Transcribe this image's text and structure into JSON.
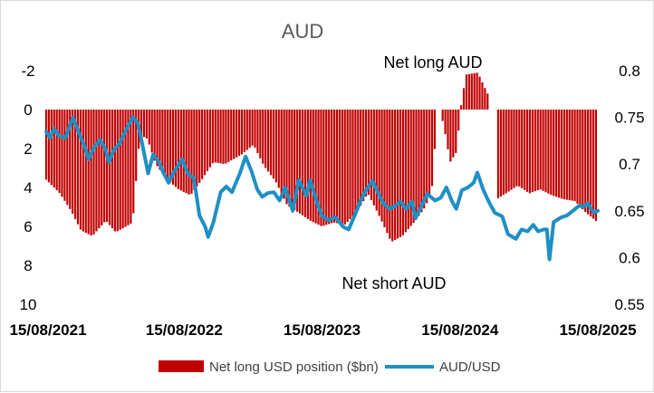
{
  "chart_data": {
    "type": "bar+line",
    "title": "AUD",
    "annotations": {
      "top": "Net long AUD",
      "bottom": "Net short AUD"
    },
    "legend": {
      "placement": "bottom",
      "bar_label": "Net long USD position ($bn)",
      "line_label": "AUD/USD"
    },
    "colors": {
      "bars": "#c00000",
      "line": "#1f8fc4"
    },
    "y_left": {
      "min": -2,
      "max": 10,
      "inverted": true,
      "ticks": [
        -2,
        0,
        2,
        4,
        6,
        8,
        10
      ]
    },
    "y_right": {
      "min": 0.55,
      "max": 0.8,
      "ticks": [
        0.8,
        0.75,
        0.7,
        0.65,
        0.6,
        0.55
      ],
      "tick_labels": [
        "0.8",
        "0.75",
        "0.7",
        "0.65",
        "0.6",
        "0.55"
      ]
    },
    "x_axis": {
      "start": "2021-08-15",
      "end": "2025-08-15",
      "tick_labels": [
        "15/08/2021",
        "15/08/2022",
        "15/08/2023",
        "15/08/2024",
        "15/08/2025"
      ]
    },
    "series": [
      {
        "name": "Net long USD position ($bn)",
        "kind": "bar",
        "frequency": "weekly",
        "anchors": [
          [
            "2021-08-15",
            3.6
          ],
          [
            "2021-09-20",
            4.3
          ],
          [
            "2021-10-20",
            5.2
          ],
          [
            "2021-11-15",
            6.2
          ],
          [
            "2021-12-15",
            6.5
          ],
          [
            "2022-01-20",
            5.7
          ],
          [
            "2022-02-15",
            6.3
          ],
          [
            "2022-03-15",
            6.0
          ],
          [
            "2022-04-01",
            5.8
          ],
          [
            "2022-04-20",
            1.3
          ],
          [
            "2022-05-10",
            1.5
          ],
          [
            "2022-06-01",
            2.8
          ],
          [
            "2022-07-01",
            3.6
          ],
          [
            "2022-08-01",
            4.1
          ],
          [
            "2022-09-01",
            4.4
          ],
          [
            "2022-10-01",
            3.6
          ],
          [
            "2022-11-01",
            2.7
          ],
          [
            "2022-12-01",
            2.8
          ],
          [
            "2023-01-15",
            2.3
          ],
          [
            "2023-02-15",
            1.8
          ],
          [
            "2023-03-15",
            2.9
          ],
          [
            "2023-04-15",
            3.7
          ],
          [
            "2023-05-15",
            4.9
          ],
          [
            "2023-06-15",
            5.3
          ],
          [
            "2023-07-15",
            5.7
          ],
          [
            "2023-08-15",
            6.0
          ],
          [
            "2023-09-15",
            5.8
          ],
          [
            "2023-10-15",
            5.9
          ],
          [
            "2023-11-15",
            5.3
          ],
          [
            "2023-12-15",
            4.3
          ],
          [
            "2024-01-15",
            5.5
          ],
          [
            "2024-02-15",
            6.8
          ],
          [
            "2024-03-15",
            6.5
          ],
          [
            "2024-04-15",
            5.8
          ],
          [
            "2024-05-15",
            5.0
          ],
          [
            "2024-06-01",
            4.2
          ],
          [
            "2024-06-15",
            0.4
          ],
          [
            "2024-07-01",
            0.6
          ],
          [
            "2024-07-20",
            2.7
          ],
          [
            "2024-08-05",
            2.2
          ],
          [
            "2024-08-20",
            -0.6
          ],
          [
            "2024-09-01",
            -1.8
          ],
          [
            "2024-10-01",
            -1.9
          ],
          [
            "2024-10-25",
            -0.9
          ],
          [
            "2024-11-10",
            -0.3
          ],
          [
            "2024-11-20",
            4.6
          ],
          [
            "2024-12-15",
            4.3
          ],
          [
            "2025-01-15",
            3.9
          ],
          [
            "2025-02-15",
            4.3
          ],
          [
            "2025-03-15",
            4.1
          ],
          [
            "2025-04-15",
            4.4
          ],
          [
            "2025-05-15",
            4.6
          ],
          [
            "2025-06-15",
            4.7
          ],
          [
            "2025-07-15",
            5.3
          ],
          [
            "2025-08-15",
            5.8
          ]
        ],
        "gaps": [
          [
            "2024-06-10",
            "2024-06-24"
          ],
          [
            "2024-10-28",
            "2024-11-18"
          ]
        ]
      },
      {
        "name": "AUD/USD",
        "kind": "line",
        "points": [
          [
            "2021-08-15",
            0.735
          ],
          [
            "2021-08-25",
            0.728
          ],
          [
            "2021-09-05",
            0.738
          ],
          [
            "2021-09-18",
            0.73
          ],
          [
            "2021-10-05",
            0.728
          ],
          [
            "2021-10-25",
            0.75
          ],
          [
            "2021-11-10",
            0.733
          ],
          [
            "2021-11-25",
            0.718
          ],
          [
            "2021-12-05",
            0.705
          ],
          [
            "2021-12-20",
            0.718
          ],
          [
            "2022-01-05",
            0.726
          ],
          [
            "2022-01-20",
            0.715
          ],
          [
            "2022-01-28",
            0.702
          ],
          [
            "2022-02-10",
            0.715
          ],
          [
            "2022-02-25",
            0.722
          ],
          [
            "2022-03-15",
            0.737
          ],
          [
            "2022-04-01",
            0.75
          ],
          [
            "2022-04-15",
            0.744
          ],
          [
            "2022-05-01",
            0.712
          ],
          [
            "2022-05-12",
            0.69
          ],
          [
            "2022-05-25",
            0.71
          ],
          [
            "2022-06-10",
            0.702
          ],
          [
            "2022-06-20",
            0.692
          ],
          [
            "2022-07-05",
            0.68
          ],
          [
            "2022-07-20",
            0.692
          ],
          [
            "2022-08-10",
            0.705
          ],
          [
            "2022-08-25",
            0.69
          ],
          [
            "2022-09-10",
            0.685
          ],
          [
            "2022-09-25",
            0.645
          ],
          [
            "2022-10-10",
            0.633
          ],
          [
            "2022-10-18",
            0.622
          ],
          [
            "2022-11-01",
            0.638
          ],
          [
            "2022-11-20",
            0.67
          ],
          [
            "2022-12-05",
            0.676
          ],
          [
            "2022-12-20",
            0.67
          ],
          [
            "2023-01-10",
            0.69
          ],
          [
            "2023-01-25",
            0.708
          ],
          [
            "2023-02-10",
            0.692
          ],
          [
            "2023-02-25",
            0.673
          ],
          [
            "2023-03-10",
            0.665
          ],
          [
            "2023-03-25",
            0.669
          ],
          [
            "2023-04-10",
            0.67
          ],
          [
            "2023-04-25",
            0.661
          ],
          [
            "2023-05-10",
            0.675
          ],
          [
            "2023-05-30",
            0.65
          ],
          [
            "2023-06-15",
            0.683
          ],
          [
            "2023-07-05",
            0.666
          ],
          [
            "2023-07-15",
            0.683
          ],
          [
            "2023-08-01",
            0.66
          ],
          [
            "2023-08-15",
            0.645
          ],
          [
            "2023-09-01",
            0.64
          ],
          [
            "2023-09-20",
            0.643
          ],
          [
            "2023-10-10",
            0.633
          ],
          [
            "2023-10-25",
            0.63
          ],
          [
            "2023-11-10",
            0.645
          ],
          [
            "2023-11-25",
            0.66
          ],
          [
            "2023-12-10",
            0.672
          ],
          [
            "2023-12-27",
            0.682
          ],
          [
            "2024-01-10",
            0.67
          ],
          [
            "2024-01-25",
            0.658
          ],
          [
            "2024-02-10",
            0.652
          ],
          [
            "2024-02-25",
            0.655
          ],
          [
            "2024-03-10",
            0.66
          ],
          [
            "2024-03-25",
            0.652
          ],
          [
            "2024-04-10",
            0.66
          ],
          [
            "2024-04-19",
            0.642
          ],
          [
            "2024-05-05",
            0.655
          ],
          [
            "2024-05-20",
            0.668
          ],
          [
            "2024-06-10",
            0.661
          ],
          [
            "2024-06-25",
            0.664
          ],
          [
            "2024-07-10",
            0.675
          ],
          [
            "2024-07-25",
            0.66
          ],
          [
            "2024-08-05",
            0.652
          ],
          [
            "2024-08-20",
            0.672
          ],
          [
            "2024-09-05",
            0.675
          ],
          [
            "2024-09-20",
            0.68
          ],
          [
            "2024-09-30",
            0.691
          ],
          [
            "2024-10-15",
            0.673
          ],
          [
            "2024-10-30",
            0.66
          ],
          [
            "2024-11-15",
            0.648
          ],
          [
            "2024-12-05",
            0.644
          ],
          [
            "2024-12-20",
            0.625
          ],
          [
            "2025-01-10",
            0.62
          ],
          [
            "2025-01-25",
            0.63
          ],
          [
            "2025-02-10",
            0.628
          ],
          [
            "2025-02-25",
            0.635
          ],
          [
            "2025-03-10",
            0.628
          ],
          [
            "2025-03-25",
            0.63
          ],
          [
            "2025-04-02",
            0.63
          ],
          [
            "2025-04-09",
            0.598
          ],
          [
            "2025-04-20",
            0.638
          ],
          [
            "2025-05-10",
            0.643
          ],
          [
            "2025-05-25",
            0.645
          ],
          [
            "2025-06-10",
            0.65
          ],
          [
            "2025-06-25",
            0.655
          ],
          [
            "2025-07-10",
            0.655
          ],
          [
            "2025-07-20",
            0.658
          ],
          [
            "2025-07-28",
            0.652
          ],
          [
            "2025-08-05",
            0.648
          ],
          [
            "2025-08-15",
            0.65
          ]
        ]
      }
    ]
  }
}
